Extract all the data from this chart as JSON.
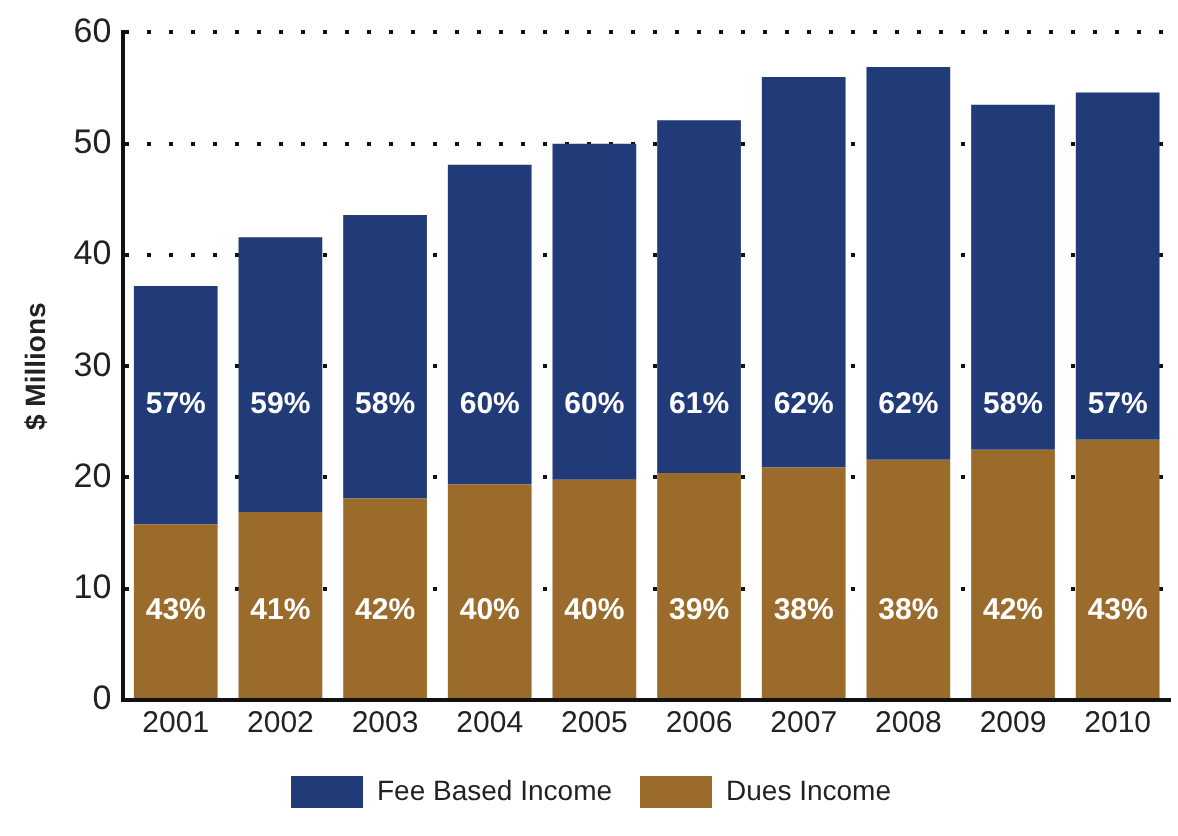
{
  "chart_data": {
    "type": "bar",
    "stacked": true,
    "ylabel": "$ Millions",
    "categories": [
      "2001",
      "2002",
      "2003",
      "2004",
      "2005",
      "2006",
      "2007",
      "2008",
      "2009",
      "2010"
    ],
    "series": [
      {
        "name": "Dues Income",
        "color": "#9a6b2b",
        "values": [
          15.8,
          16.9,
          18.1,
          19.4,
          19.8,
          20.4,
          20.9,
          21.6,
          22.5,
          23.4
        ]
      },
      {
        "name": "Fee Based Income",
        "color": "#213a78",
        "values": [
          21.4,
          24.7,
          25.5,
          28.7,
          30.2,
          31.7,
          35.1,
          35.3,
          31.0,
          31.2
        ]
      }
    ],
    "annotations": [
      "43%",
      "41%",
      "42%",
      "40%",
      "40%",
      "39%",
      "38%",
      "38%",
      "42%",
      "43%",
      "57%",
      "59%",
      "58%",
      "60%",
      "60%",
      "61%",
      "62%",
      "62%",
      "58%",
      "57%"
    ],
    "ylim": [
      0,
      60
    ],
    "yticks": [
      0,
      10,
      20,
      30,
      40,
      50,
      60
    ],
    "grid": "y",
    "legend": "bottom"
  }
}
